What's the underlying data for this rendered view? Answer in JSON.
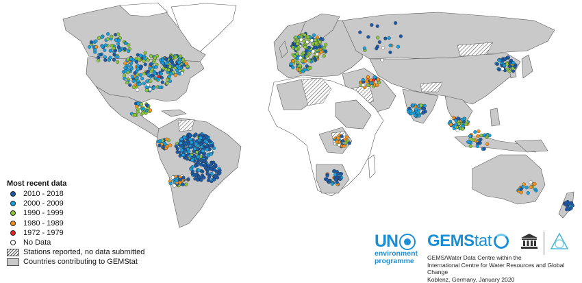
{
  "legend": {
    "title": "Most recent data",
    "items": [
      {
        "label": "2010 - 2018",
        "color": "#1d5aa8",
        "kind": "dot"
      },
      {
        "label": "2000 - 2009",
        "color": "#1aa0de",
        "kind": "dot"
      },
      {
        "label": "1990 - 1999",
        "color": "#8cc63f",
        "kind": "dot"
      },
      {
        "label": "1980 - 1989",
        "color": "#f7941d",
        "kind": "dot"
      },
      {
        "label": "1972 - 1979",
        "color": "#e4262a",
        "kind": "dot"
      },
      {
        "label": "No Data",
        "color": "#ffffff",
        "kind": "open"
      },
      {
        "label": "Stations reported, no data submitted",
        "kind": "hatch"
      },
      {
        "label": "Countries contributing to GEMStat",
        "color": "#c9c9c9",
        "kind": "grey"
      }
    ]
  },
  "logos": {
    "un_word": "UN",
    "un_line1": "environment",
    "un_line2": "programme",
    "gems_bold": "GEMS",
    "gems_light": "tat"
  },
  "credit": {
    "line1": "GEMS/Water Data Centre within the",
    "line2": "International Centre for Water Resources and Global Change",
    "line3": "Koblenz, Germany, January 2020"
  },
  "colors": {
    "contributing_land": "#c9c9c9",
    "other_land": "#ffffff",
    "brand_blue": "#1a8fd6"
  }
}
